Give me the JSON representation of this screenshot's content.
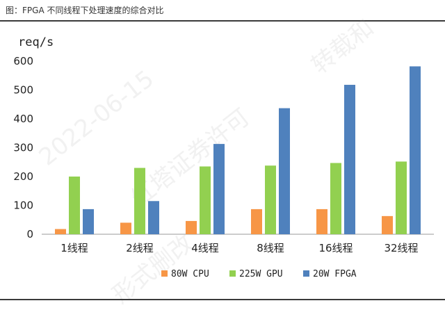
{
  "caption": "图：FPGA 不同线程下处理速度的综合对比",
  "watermark": {
    "date": "2022-06-15",
    "line1": "红塔证券许可",
    "line2": "转载和",
    "line3": "形式删改"
  },
  "colors": {
    "cpu": "#f79646",
    "gpu": "#92d050",
    "fpga": "#4f81bd"
  },
  "chart_data": {
    "type": "bar",
    "title": "",
    "ylabel": "req/s",
    "xlabel": "",
    "ylim": [
      0,
      600
    ],
    "yticks": [
      0,
      100,
      200,
      300,
      400,
      500,
      600
    ],
    "categories": [
      "1线程",
      "2线程",
      "4线程",
      "8线程",
      "16线程",
      "32线程"
    ],
    "legend_position": "bottom",
    "grid": false,
    "series": [
      {
        "name": "80W CPU",
        "color": "#f79646",
        "values": [
          18,
          40,
          46,
          87,
          87,
          63
        ]
      },
      {
        "name": "225W GPU",
        "color": "#92d050",
        "values": [
          200,
          230,
          235,
          238,
          247,
          252
        ]
      },
      {
        "name": "20W FPGA",
        "color": "#4f81bd",
        "values": [
          87,
          115,
          313,
          437,
          518,
          582
        ]
      }
    ]
  }
}
